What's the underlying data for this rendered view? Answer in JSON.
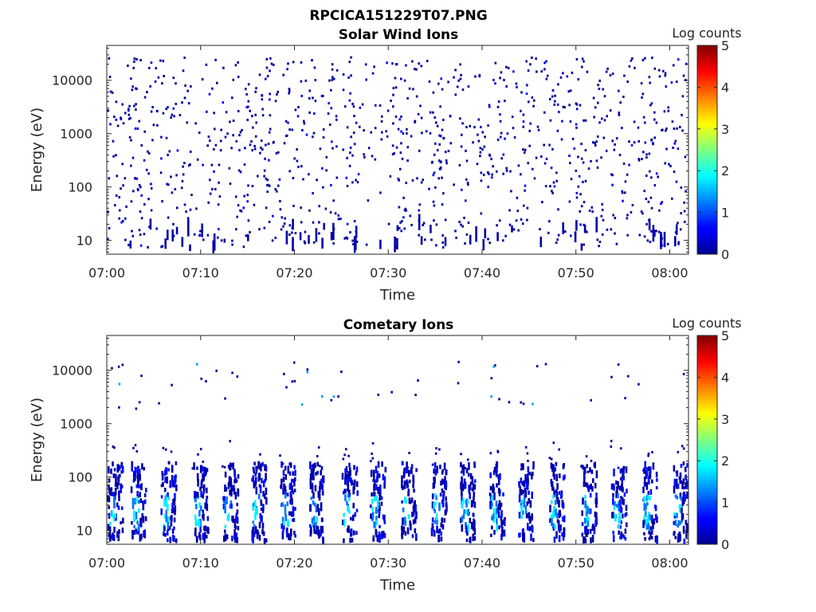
{
  "figure": {
    "title": "RPCICA151229T07.PNG"
  },
  "chart_data": [
    {
      "type": "heatmap",
      "title": "Solar Wind Ions",
      "xlabel": "Time",
      "ylabel": "Energy (eV)",
      "x_range": [
        "07:00",
        "08:02"
      ],
      "x_ticks": [
        "07:00",
        "07:10",
        "07:20",
        "07:30",
        "07:40",
        "07:50",
        "08:00"
      ],
      "y_scale": "log",
      "y_range": [
        5.5,
        45000
      ],
      "y_ticks": [
        10,
        100,
        1000,
        10000
      ],
      "y_tick_labels": [
        "10",
        "100",
        "1000",
        "10000"
      ],
      "colorbar": {
        "label": "Log counts",
        "range": [
          0,
          5
        ],
        "ticks": [
          "0",
          "1",
          "2",
          "3",
          "4",
          "5"
        ],
        "colormap": "jet"
      },
      "description_level": "sparse scattered single counts (log counts ~0-1) across all energies 7-30000 eV, denser below 30 eV",
      "seed": 11,
      "samples": 1100,
      "low_energy_streaks": 55
    },
    {
      "type": "heatmap",
      "title": "Cometary Ions",
      "xlabel": "Time",
      "ylabel": "Energy (eV)",
      "x_range": [
        "07:00",
        "08:02"
      ],
      "x_ticks": [
        "07:00",
        "07:10",
        "07:20",
        "07:30",
        "07:40",
        "07:50",
        "08:00"
      ],
      "y_scale": "log",
      "y_range": [
        5.5,
        45000
      ],
      "y_ticks": [
        10,
        100,
        1000,
        10000
      ],
      "y_tick_labels": [
        "10",
        "100",
        "1000",
        "10000"
      ],
      "colorbar": {
        "label": "Log counts",
        "range": [
          0,
          5
        ],
        "ticks": [
          "0",
          "1",
          "2",
          "3",
          "4",
          "5"
        ],
        "colormap": "jet"
      },
      "bursts_minutes": [
        0.5,
        3.0,
        6.2,
        9.6,
        12.8,
        15.8,
        18.9,
        22.0,
        25.5,
        28.5,
        31.8,
        35.0,
        38.1,
        41.2,
        44.3,
        47.6,
        51.0,
        54.2,
        57.5,
        60.8
      ],
      "burst_energy_range": [
        7,
        200
      ],
      "burst_peak_log_counts": 1.8,
      "seed": 23,
      "high_energy_samples": 55
    }
  ]
}
